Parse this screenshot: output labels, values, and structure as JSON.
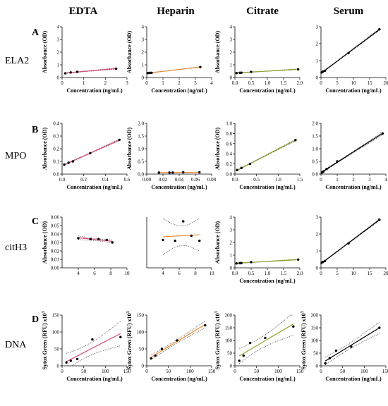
{
  "columns": [
    "EDTA",
    "Heparin",
    "Citrate",
    "Serum"
  ],
  "rows": [
    {
      "panel": "A",
      "label": "ELA2"
    },
    {
      "panel": "B",
      "label": "MPO"
    },
    {
      "panel": "C",
      "label": "citH3"
    },
    {
      "panel": "D",
      "label": "DNA"
    }
  ],
  "chart_data": [
    {
      "id": "A-EDTA",
      "type": "scatter",
      "fit": "linear",
      "fit_color": "#e0457f",
      "ci_band": true,
      "xlabel": "Concentration (ng/mL)",
      "ylabel": "Absorbance (OD)",
      "xlim": [
        0,
        3
      ],
      "ylim": [
        0,
        4
      ],
      "xticks": [
        0,
        1,
        2,
        3
      ],
      "yticks": [
        0,
        1,
        2,
        3,
        4
      ],
      "x": [
        0.15,
        0.4,
        0.7,
        2.5
      ],
      "y": [
        0.33,
        0.4,
        0.45,
        0.7
      ]
    },
    {
      "id": "A-Heparin",
      "type": "scatter",
      "fit": "linear",
      "fit_color": "#f08a2c",
      "ci_band": true,
      "xlabel": "Concentration (ng/mL)",
      "ylabel": "Absorbance (OD)",
      "xlim": [
        0,
        4
      ],
      "ylim": [
        0,
        4
      ],
      "xticks": [
        0,
        1,
        2,
        3,
        4
      ],
      "yticks": [
        0,
        1,
        2,
        3,
        4
      ],
      "x": [
        0.05,
        0.1,
        0.2,
        0.3,
        3.3
      ],
      "y": [
        0.35,
        0.36,
        0.37,
        0.37,
        0.83
      ]
    },
    {
      "id": "A-Citrate",
      "type": "scatter",
      "fit": "linear",
      "fit_color": "#8aa628",
      "ci_band": true,
      "xlabel": "Concentration (ng/mL)",
      "ylabel": "Absorbance (OD)",
      "xlim": [
        0,
        2
      ],
      "ylim": [
        0,
        4
      ],
      "xticks": [
        "0.0",
        "0.5",
        "1.0",
        "1.5",
        "2.0"
      ],
      "yticks": [
        0,
        1,
        2,
        3,
        4
      ],
      "x": [
        0.05,
        0.15,
        0.2,
        0.5,
        1.95
      ],
      "y": [
        0.35,
        0.37,
        0.38,
        0.45,
        0.65
      ]
    },
    {
      "id": "A-Serum",
      "type": "scatter",
      "fit": "linear",
      "fit_color": "#000000",
      "ci_band": true,
      "xlabel": "Concentration (ng/mL)",
      "ylabel": "",
      "xlim": [
        0,
        20
      ],
      "ylim": [
        0,
        3
      ],
      "xticks": [
        0,
        5,
        10,
        15,
        20
      ],
      "yticks": [
        0,
        1,
        2,
        3
      ],
      "x": [
        0.2,
        0.6,
        1.2,
        8.5,
        18
      ],
      "y": [
        0.3,
        0.35,
        0.4,
        1.45,
        2.85
      ]
    },
    {
      "id": "B-EDTA",
      "type": "scatter",
      "fit": "linear",
      "fit_color": "#e0457f",
      "ci_band": true,
      "xlabel": "Concentration (ng/mL)",
      "ylabel": "Absorbance (OD)",
      "xlim": [
        0,
        0.6
      ],
      "ylim": [
        0,
        0.4
      ],
      "xticks": [
        "0.0",
        "0.2",
        "0.4",
        "0.6"
      ],
      "yticks": [
        "0.0",
        "0.1",
        "0.2",
        "0.3",
        "0.4"
      ],
      "x": [
        0.02,
        0.06,
        0.1,
        0.26,
        0.53
      ],
      "y": [
        0.075,
        0.09,
        0.1,
        0.165,
        0.27
      ]
    },
    {
      "id": "B-Heparin",
      "type": "scatter",
      "fit": "linear",
      "fit_color": "#f08a2c",
      "ci_band": true,
      "xlabel": "Concentration (ng/mL)",
      "ylabel": "Absorbance (OD)",
      "xlim": [
        0,
        0.08
      ],
      "ylim": [
        0,
        2
      ],
      "xticks": [
        "0.00",
        "0.02",
        "0.04",
        "0.06",
        "0.08"
      ],
      "yticks": [
        "0.0",
        "0.5",
        "1.0",
        "1.5",
        "2.0"
      ],
      "x": [
        0.015,
        0.028,
        0.032,
        0.045,
        0.065
      ],
      "y": [
        0.06,
        0.06,
        0.06,
        0.07,
        0.07
      ]
    },
    {
      "id": "B-Citrate",
      "type": "scatter",
      "fit": "linear",
      "fit_color": "#8aa628",
      "ci_band": true,
      "xlabel": "Concentration (ng/mL)",
      "ylabel": "Absorbance (OD)",
      "xlim": [
        0,
        1.5
      ],
      "ylim": [
        0,
        1
      ],
      "xticks": [
        "0.0",
        "0.5",
        "1.0",
        "1.5"
      ],
      "yticks": [
        "0.0",
        "0.2",
        "0.4",
        "0.6",
        "0.8",
        "1.0"
      ],
      "x": [
        0.05,
        0.15,
        0.35,
        1.4
      ],
      "y": [
        0.08,
        0.12,
        0.2,
        0.67
      ]
    },
    {
      "id": "B-Serum",
      "type": "scatter",
      "fit": "linear",
      "fit_color": "#000000",
      "ci_band": true,
      "xlabel": "Concentration (ng/mL)",
      "ylabel": "",
      "xlim": [
        0,
        4
      ],
      "ylim": [
        0,
        2
      ],
      "xticks": [
        0,
        1,
        2,
        3,
        4
      ],
      "yticks": [
        "0.0",
        "0.5",
        "1.0",
        "1.5",
        "2.0"
      ],
      "x": [
        0.05,
        0.15,
        0.35,
        1.0,
        3.8
      ],
      "y": [
        0.06,
        0.1,
        0.2,
        0.5,
        1.6
      ]
    },
    {
      "id": "C-EDTA",
      "type": "scatter",
      "fit": "linear",
      "fit_color": "#e0457f",
      "ci_band": true,
      "xlabel": "",
      "ylabel": "Absorbance (OD)",
      "xlim": [
        2,
        10
      ],
      "ylim": [
        0,
        0.06
      ],
      "xticks": [
        4,
        6,
        8,
        10
      ],
      "yticks": [
        "0.00",
        "0.01",
        "0.02",
        "0.03",
        "0.04",
        "0.05",
        "0.06"
      ],
      "x": [
        4,
        5.5,
        6.5,
        7.5,
        8.2
      ],
      "y": [
        0.035,
        0.034,
        0.034,
        0.033,
        0.03
      ]
    },
    {
      "id": "C-Heparin",
      "type": "scatter",
      "fit": "linear",
      "fit_color": "#f08a2c",
      "ci_band": true,
      "xlabel": "",
      "ylabel": "",
      "xlim": [
        2,
        10
      ],
      "ylim": [
        0,
        0.06
      ],
      "xticks": [
        4,
        6,
        8,
        10
      ],
      "yticks": [],
      "x": [
        4,
        5.5,
        6.5,
        7.5,
        8.5
      ],
      "y": [
        0.033,
        0.032,
        0.055,
        0.038,
        0.032
      ]
    },
    {
      "id": "C-Citrate",
      "type": "scatter",
      "fit": "linear",
      "fit_color": "#8aa628",
      "ci_band": true,
      "xlabel": "Concentration (ng/mL)",
      "ylabel": "Absorbance (OD)",
      "xlim": [
        0,
        2
      ],
      "ylim": [
        0,
        4
      ],
      "xticks": [
        "0.0",
        "0.5",
        "1.0",
        "1.5",
        "2.0"
      ],
      "yticks": [
        0,
        1,
        2,
        3,
        4
      ],
      "x": [
        0.05,
        0.15,
        0.2,
        0.5,
        1.95
      ],
      "y": [
        0.35,
        0.37,
        0.38,
        0.45,
        0.65
      ]
    },
    {
      "id": "C-Serum",
      "type": "scatter",
      "fit": "linear",
      "fit_color": "#000000",
      "ci_band": true,
      "xlabel": "",
      "ylabel": "",
      "xlim": [
        0,
        20
      ],
      "ylim": [
        0,
        3
      ],
      "xticks": [
        0,
        5,
        10,
        15,
        20
      ],
      "yticks": [
        0,
        1,
        2,
        3
      ],
      "x": [
        0.2,
        0.6,
        1.2,
        8.5,
        18
      ],
      "y": [
        0.3,
        0.35,
        0.4,
        1.45,
        2.85
      ]
    },
    {
      "id": "D-EDTA",
      "type": "scatter",
      "fit": "linear",
      "fit_color": "#e0457f",
      "ci_band": true,
      "xlabel": "Concentration (ng/mL)",
      "ylabel": "Sytox Green (RFU) x10",
      "ylabel_sup": "3",
      "xlim": [
        0,
        150
      ],
      "ylim": [
        0,
        150
      ],
      "xticks": [
        0,
        50,
        100,
        150
      ],
      "yticks": [
        0,
        50,
        100,
        150
      ],
      "x": [
        10,
        20,
        35,
        70,
        135
      ],
      "y": [
        10,
        15,
        20,
        78,
        85
      ]
    },
    {
      "id": "D-Heparin",
      "type": "scatter",
      "fit": "linear",
      "fit_color": "#f08a2c",
      "ci_band": true,
      "xlabel": "Concentration (ng/mL)",
      "ylabel": "Sytox Green (RFU) x10",
      "ylabel_sup": "3",
      "xlim": [
        0,
        150
      ],
      "ylim": [
        0,
        150
      ],
      "xticks": [
        0,
        50,
        100,
        150
      ],
      "yticks": [
        0,
        50,
        100,
        150
      ],
      "x": [
        10,
        20,
        35,
        70,
        135
      ],
      "y": [
        22,
        30,
        50,
        75,
        120
      ]
    },
    {
      "id": "D-Citrate",
      "type": "scatter",
      "fit": "linear",
      "fit_color": "#8aa628",
      "ci_band": true,
      "xlabel": "Concentration (ng/mL)",
      "ylabel": "Sytox Green (RFU) x10",
      "ylabel_sup": "3",
      "xlim": [
        0,
        150
      ],
      "ylim": [
        0,
        200
      ],
      "xticks": [
        0,
        50,
        100,
        150
      ],
      "yticks": [
        0,
        50,
        100,
        150,
        200
      ],
      "x": [
        10,
        20,
        35,
        70,
        135
      ],
      "y": [
        20,
        40,
        90,
        110,
        155
      ]
    },
    {
      "id": "D-Serum",
      "type": "scatter",
      "fit": "linear",
      "fit_color": "#000000",
      "ci_band": true,
      "xlabel": "Concentration (ng/mL)",
      "ylabel": "Sytox Green (RFU) x10",
      "ylabel_sup": "3",
      "xlim": [
        0,
        150
      ],
      "ylim": [
        0,
        200
      ],
      "xticks": [
        0,
        50,
        100,
        150
      ],
      "yticks": [
        0,
        50,
        100,
        150,
        200
      ],
      "x": [
        10,
        20,
        35,
        70,
        135
      ],
      "y": [
        10,
        30,
        60,
        75,
        150
      ]
    }
  ]
}
